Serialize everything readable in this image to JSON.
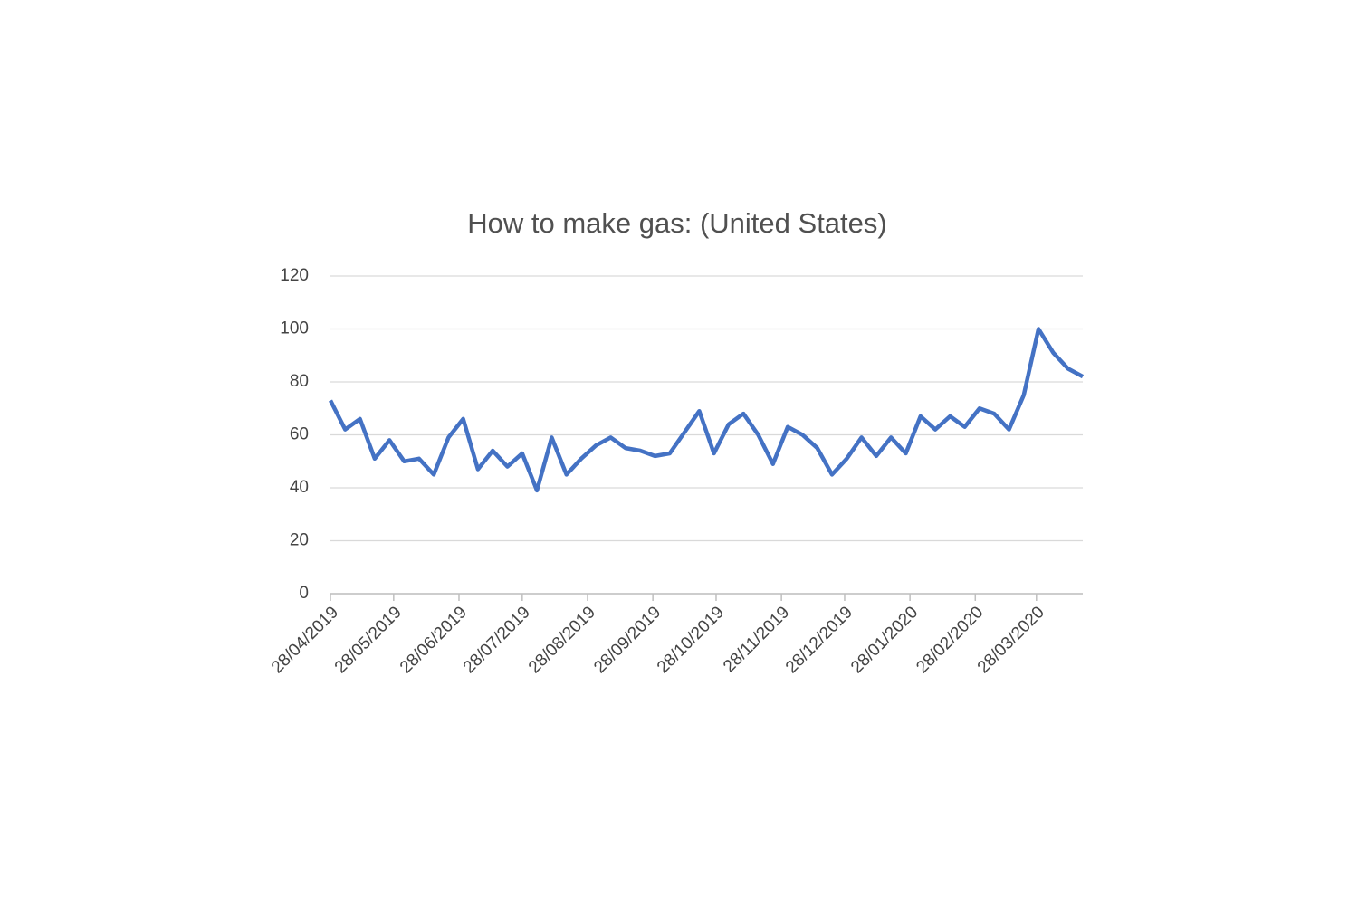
{
  "chart_data": {
    "type": "line",
    "title": "How to make gas: (United States)",
    "x": [
      "2019-04-28",
      "2019-05-05",
      "2019-05-12",
      "2019-05-19",
      "2019-05-26",
      "2019-06-02",
      "2019-06-09",
      "2019-06-16",
      "2019-06-23",
      "2019-06-30",
      "2019-07-07",
      "2019-07-14",
      "2019-07-21",
      "2019-07-28",
      "2019-08-04",
      "2019-08-11",
      "2019-08-18",
      "2019-08-25",
      "2019-09-01",
      "2019-09-08",
      "2019-09-15",
      "2019-09-22",
      "2019-09-29",
      "2019-10-06",
      "2019-10-13",
      "2019-10-20",
      "2019-10-27",
      "2019-11-03",
      "2019-11-10",
      "2019-11-17",
      "2019-11-24",
      "2019-12-01",
      "2019-12-08",
      "2019-12-15",
      "2019-12-22",
      "2019-12-29",
      "2020-01-05",
      "2020-01-12",
      "2020-01-19",
      "2020-01-26",
      "2020-02-02",
      "2020-02-09",
      "2020-02-16",
      "2020-02-23",
      "2020-03-01",
      "2020-03-08",
      "2020-03-15",
      "2020-03-22",
      "2020-03-29",
      "2020-04-05",
      "2020-04-12",
      "2020-04-19"
    ],
    "values": [
      73,
      62,
      66,
      51,
      58,
      50,
      51,
      45,
      59,
      66,
      47,
      54,
      48,
      53,
      39,
      59,
      45,
      51,
      56,
      59,
      55,
      54,
      52,
      53,
      61,
      69,
      53,
      64,
      68,
      60,
      49,
      63,
      60,
      55,
      45,
      51,
      59,
      52,
      59,
      53,
      67,
      62,
      67,
      63,
      70,
      68,
      62,
      75,
      100,
      91,
      85,
      82
    ],
    "color": "#4472c4",
    "xlim": [
      "2019-04-28",
      "2020-04-19"
    ],
    "xticks": [
      {
        "value": "2019-04-28",
        "label": "28/04/2019"
      },
      {
        "value": "2019-05-28",
        "label": "28/05/2019"
      },
      {
        "value": "2019-06-28",
        "label": "28/06/2019"
      },
      {
        "value": "2019-07-28",
        "label": "28/07/2019"
      },
      {
        "value": "2019-08-28",
        "label": "28/08/2019"
      },
      {
        "value": "2019-09-28",
        "label": "28/09/2019"
      },
      {
        "value": "2019-10-28",
        "label": "28/10/2019"
      },
      {
        "value": "2019-11-28",
        "label": "28/11/2019"
      },
      {
        "value": "2019-12-28",
        "label": "28/12/2019"
      },
      {
        "value": "2020-01-28",
        "label": "28/01/2020"
      },
      {
        "value": "2020-02-28",
        "label": "28/02/2020"
      },
      {
        "value": "2020-03-28",
        "label": "28/03/2020"
      }
    ],
    "ylim": [
      0,
      120
    ],
    "yticks": [
      0,
      20,
      40,
      60,
      80,
      100,
      120
    ],
    "grid": true
  }
}
